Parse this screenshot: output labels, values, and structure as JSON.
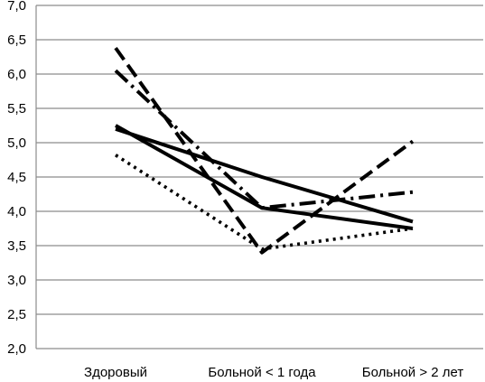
{
  "chart_data": {
    "type": "line",
    "title": "",
    "xlabel": "",
    "ylabel": "",
    "categories": [
      "Здоровый",
      "Больной < 1 года",
      "Больной > 2 лет"
    ],
    "ylim": [
      2.0,
      7.0
    ],
    "y_ticks": [
      "2,0",
      "2,5",
      "3,0",
      "3,5",
      "4,0",
      "4,5",
      "5,0",
      "5,5",
      "6,0",
      "6,5",
      "7,0"
    ],
    "y_tick_values": [
      2.0,
      2.5,
      3.0,
      3.5,
      4.0,
      4.5,
      5.0,
      5.5,
      6.0,
      6.5,
      7.0
    ],
    "grid": true,
    "legend": "none",
    "series": [
      {
        "values": [
          5.2,
          4.5,
          3.85
        ],
        "style": "solid",
        "color": "#000000"
      },
      {
        "values": [
          5.25,
          4.05,
          3.75
        ],
        "style": "solid",
        "color": "#000000"
      },
      {
        "values": [
          6.38,
          3.4,
          5.02
        ],
        "style": "dashed",
        "color": "#000000"
      },
      {
        "values": [
          6.05,
          4.05,
          4.28
        ],
        "style": "dash-dot",
        "color": "#000000"
      },
      {
        "values": [
          4.82,
          3.45,
          3.75
        ],
        "style": "dotted",
        "color": "#000000"
      }
    ]
  }
}
